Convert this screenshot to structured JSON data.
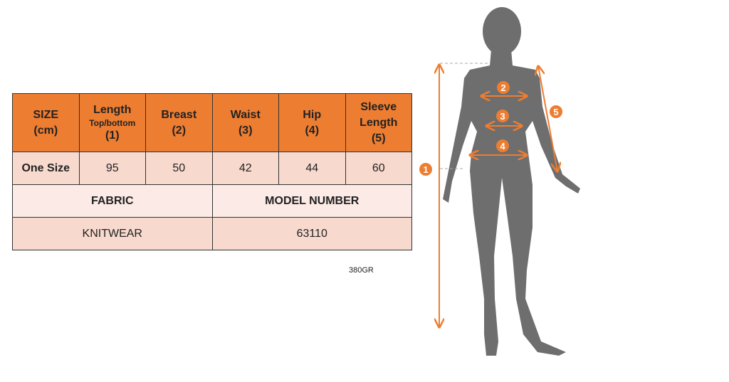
{
  "table": {
    "headers": [
      {
        "line1": "SIZE",
        "line2": "(cm)"
      },
      {
        "line1": "Length",
        "sub": "Top/bottom",
        "line2": "(1)"
      },
      {
        "line1": "Breast",
        "line2": "(2)"
      },
      {
        "line1": "Waist",
        "line2": "(3)"
      },
      {
        "line1": "Hip",
        "line2": "(4)"
      },
      {
        "line1": "Sleeve",
        "line1b": "Length",
        "line2": "(5)"
      }
    ],
    "row": [
      "One Size",
      "95",
      "50",
      "42",
      "44",
      "60"
    ],
    "fabric_label": "FABRIC",
    "model_label": "MODEL NUMBER",
    "fabric_value": "KNITWEAR",
    "model_value": "63110"
  },
  "weight_note": "380GR",
  "figure": {
    "markers": [
      "1",
      "2",
      "3",
      "4",
      "5"
    ],
    "accent_color": "#ED7D31",
    "silhouette_color": "#6E6E6E"
  }
}
